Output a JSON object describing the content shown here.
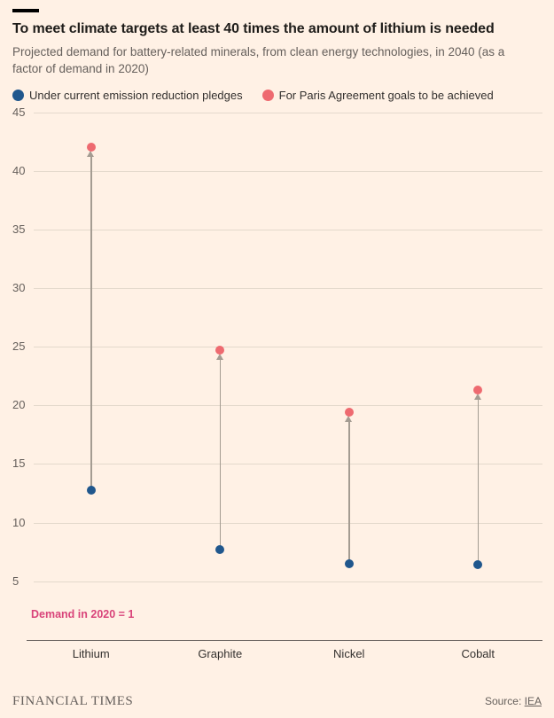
{
  "page": {
    "title": "To meet climate targets at least 40 times the amount of lithium is needed",
    "subtitle": "Projected demand for battery-related minerals, from clean energy technologies, in 2040 (as a factor of demand in 2020)"
  },
  "legend": [
    {
      "label": "Under current emission reduction pledges",
      "color": "#20578d"
    },
    {
      "label": "For Paris Agreement goals to be achieved",
      "color": "#ee6a70"
    }
  ],
  "chart_data": {
    "type": "dumbbell",
    "title": "To meet climate targets at least 40 times the amount of lithium is needed",
    "categories": [
      "Lithium",
      "Graphite",
      "Nickel",
      "Cobalt"
    ],
    "series": [
      {
        "name": "Under current emission reduction pledges",
        "color": "#20578d",
        "values": [
          12.8,
          7.7,
          6.5,
          6.4
        ]
      },
      {
        "name": "For Paris Agreement goals to be achieved",
        "color": "#ee6a70",
        "values": [
          42,
          24.7,
          19.4,
          21.3
        ]
      }
    ],
    "ylim": [
      0,
      46
    ],
    "yticks": [
      5,
      10,
      15,
      20,
      25,
      30,
      35,
      40,
      45
    ],
    "grid": true,
    "legend_position": "top",
    "annotation": "Demand in 2020 = 1",
    "xlabel": "",
    "ylabel": ""
  },
  "footer": {
    "brand": "FINANCIAL TIMES",
    "source_label": "Source: ",
    "source": "IEA"
  }
}
